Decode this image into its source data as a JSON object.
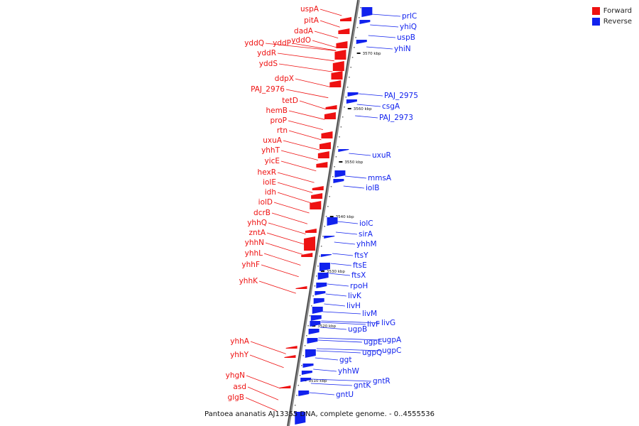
{
  "legend": {
    "forward_label": "Forward",
    "reverse_label": "Reverse",
    "forward_color": "#ee1111",
    "reverse_color": "#1122ee"
  },
  "caption": "Pantoea ananatis AJ13355 DNA, complete genome. - 0..4555536",
  "ticks": [
    "3570 kbp",
    "3560 kbp",
    "3550 kbp",
    "3540 kbp",
    "3530 kbp",
    "3520 kbp",
    "3510 kbp"
  ],
  "forward_genes": [
    "uspA",
    "pitA",
    "dadA",
    "yddO",
    "yddP",
    "yddQ",
    "yddR",
    "yddS",
    "ddpX",
    "PAJ_2976",
    "tetD",
    "hemB",
    "proP",
    "rtn",
    "uxuA",
    "yhhT",
    "yicE",
    "hexR",
    "iolE",
    "idh",
    "iolD",
    "dcrB",
    "yhhQ",
    "zntA",
    "yhhN",
    "yhhL",
    "yhhF",
    "yhhK",
    "yhhA",
    "yhhY",
    "yhgN",
    "asd",
    "glgB"
  ],
  "reverse_genes": [
    "prlC",
    "yhiQ",
    "uspB",
    "yhiN",
    "PAJ_2975",
    "csgA",
    "PAJ_2973",
    "uxuR",
    "mmsA",
    "iolB",
    "iolC",
    "sirA",
    "yhhM",
    "ftsY",
    "ftsE",
    "ftsX",
    "rpoH",
    "livK",
    "livH",
    "livM",
    "livG",
    "livF",
    "ugpB",
    "ugpA",
    "ugpE",
    "ugpC",
    "ugpQ",
    "ggt",
    "yhhW",
    "gntR",
    "gntK",
    "gntU"
  ]
}
